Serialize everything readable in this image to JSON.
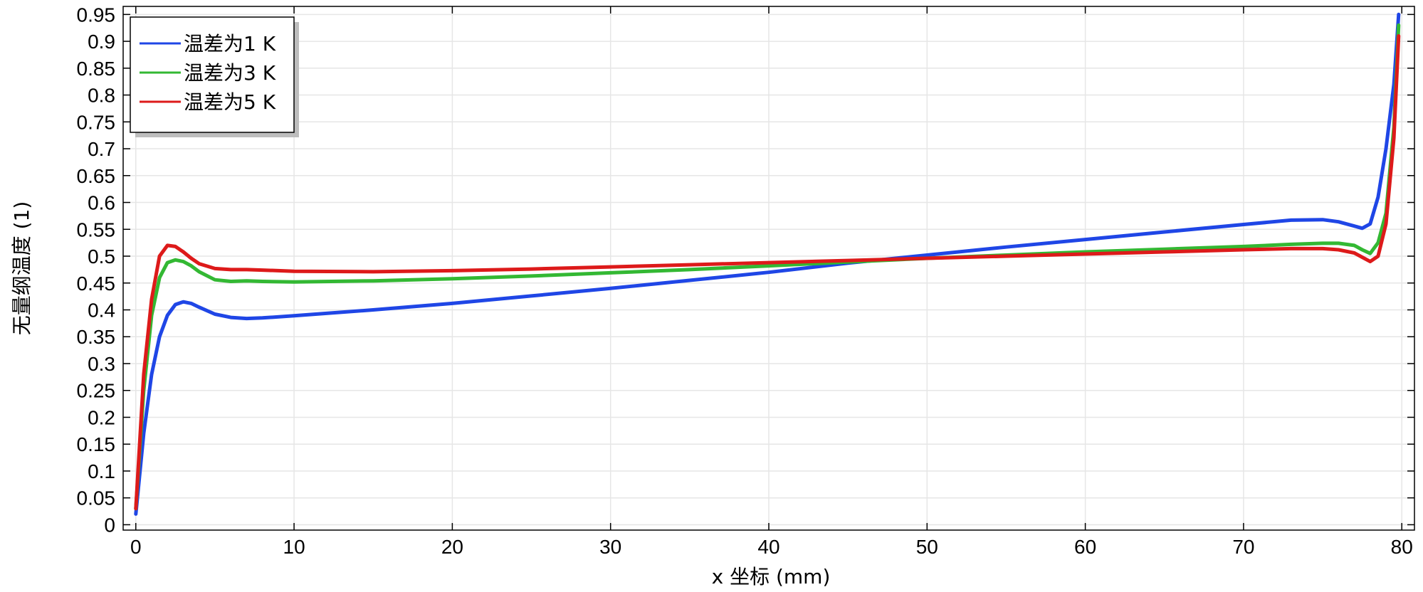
{
  "chart_data": {
    "type": "line",
    "title": "",
    "xlabel": "x 坐标 (mm)",
    "ylabel": "无量纲温度 (1)",
    "xlim": [
      -0.8,
      80.8
    ],
    "ylim": [
      -0.01,
      0.965
    ],
    "grid": true,
    "legend_position": "top-left",
    "x_ticks": [
      "0",
      "10",
      "20",
      "30",
      "40",
      "50",
      "60",
      "70",
      "80"
    ],
    "y_ticks": [
      "0",
      "0.05",
      "0.1",
      "0.15",
      "0.2",
      "0.25",
      "0.3",
      "0.35",
      "0.4",
      "0.45",
      "0.5",
      "0.55",
      "0.6",
      "0.65",
      "0.7",
      "0.75",
      "0.8",
      "0.85",
      "0.9",
      "0.95"
    ],
    "colors": {
      "grid": "#e6e6e6",
      "axis": "#000000"
    },
    "series": [
      {
        "name": "温差为1 K",
        "color": "#1f46e6",
        "x": [
          0,
          0.5,
          1,
          1.5,
          2,
          2.5,
          3,
          3.5,
          4,
          5,
          6,
          7,
          8,
          10,
          15,
          20,
          25,
          30,
          35,
          40,
          45,
          50,
          55,
          60,
          65,
          70,
          73,
          75,
          76,
          77,
          77.5,
          78,
          78.5,
          79,
          79.5,
          79.8
        ],
        "y": [
          0.02,
          0.17,
          0.28,
          0.35,
          0.39,
          0.41,
          0.415,
          0.412,
          0.405,
          0.392,
          0.386,
          0.384,
          0.385,
          0.389,
          0.4,
          0.412,
          0.426,
          0.44,
          0.455,
          0.47,
          0.487,
          0.502,
          0.517,
          0.531,
          0.545,
          0.559,
          0.567,
          0.568,
          0.564,
          0.556,
          0.552,
          0.56,
          0.61,
          0.7,
          0.82,
          0.95
        ]
      },
      {
        "name": "温差为3 K",
        "color": "#33b833",
        "x": [
          0,
          0.5,
          1,
          1.5,
          2,
          2.5,
          3,
          3.5,
          4,
          5,
          6,
          7,
          8,
          10,
          15,
          20,
          25,
          30,
          35,
          40,
          45,
          50,
          55,
          60,
          65,
          70,
          73,
          75,
          76,
          77,
          77.5,
          78,
          78.5,
          79,
          79.5,
          79.8
        ],
        "y": [
          0.03,
          0.25,
          0.39,
          0.46,
          0.488,
          0.493,
          0.49,
          0.482,
          0.471,
          0.456,
          0.453,
          0.454,
          0.453,
          0.452,
          0.454,
          0.458,
          0.463,
          0.469,
          0.475,
          0.482,
          0.489,
          0.496,
          0.502,
          0.508,
          0.513,
          0.518,
          0.522,
          0.524,
          0.524,
          0.52,
          0.512,
          0.505,
          0.525,
          0.58,
          0.74,
          0.93
        ]
      },
      {
        "name": "温差为5 K",
        "color": "#dd1a1a",
        "x": [
          0,
          0.5,
          1,
          1.5,
          2,
          2.5,
          3,
          3.5,
          4,
          5,
          6,
          7,
          8,
          10,
          15,
          20,
          25,
          30,
          35,
          40,
          45,
          50,
          55,
          60,
          65,
          70,
          73,
          75,
          76,
          77,
          77.5,
          78,
          78.5,
          79,
          79.5,
          79.8
        ],
        "y": [
          0.03,
          0.28,
          0.42,
          0.5,
          0.52,
          0.518,
          0.508,
          0.496,
          0.486,
          0.477,
          0.475,
          0.475,
          0.474,
          0.472,
          0.471,
          0.473,
          0.476,
          0.48,
          0.484,
          0.488,
          0.492,
          0.496,
          0.5,
          0.504,
          0.508,
          0.512,
          0.514,
          0.514,
          0.512,
          0.506,
          0.498,
          0.49,
          0.5,
          0.56,
          0.72,
          0.91
        ]
      }
    ]
  }
}
